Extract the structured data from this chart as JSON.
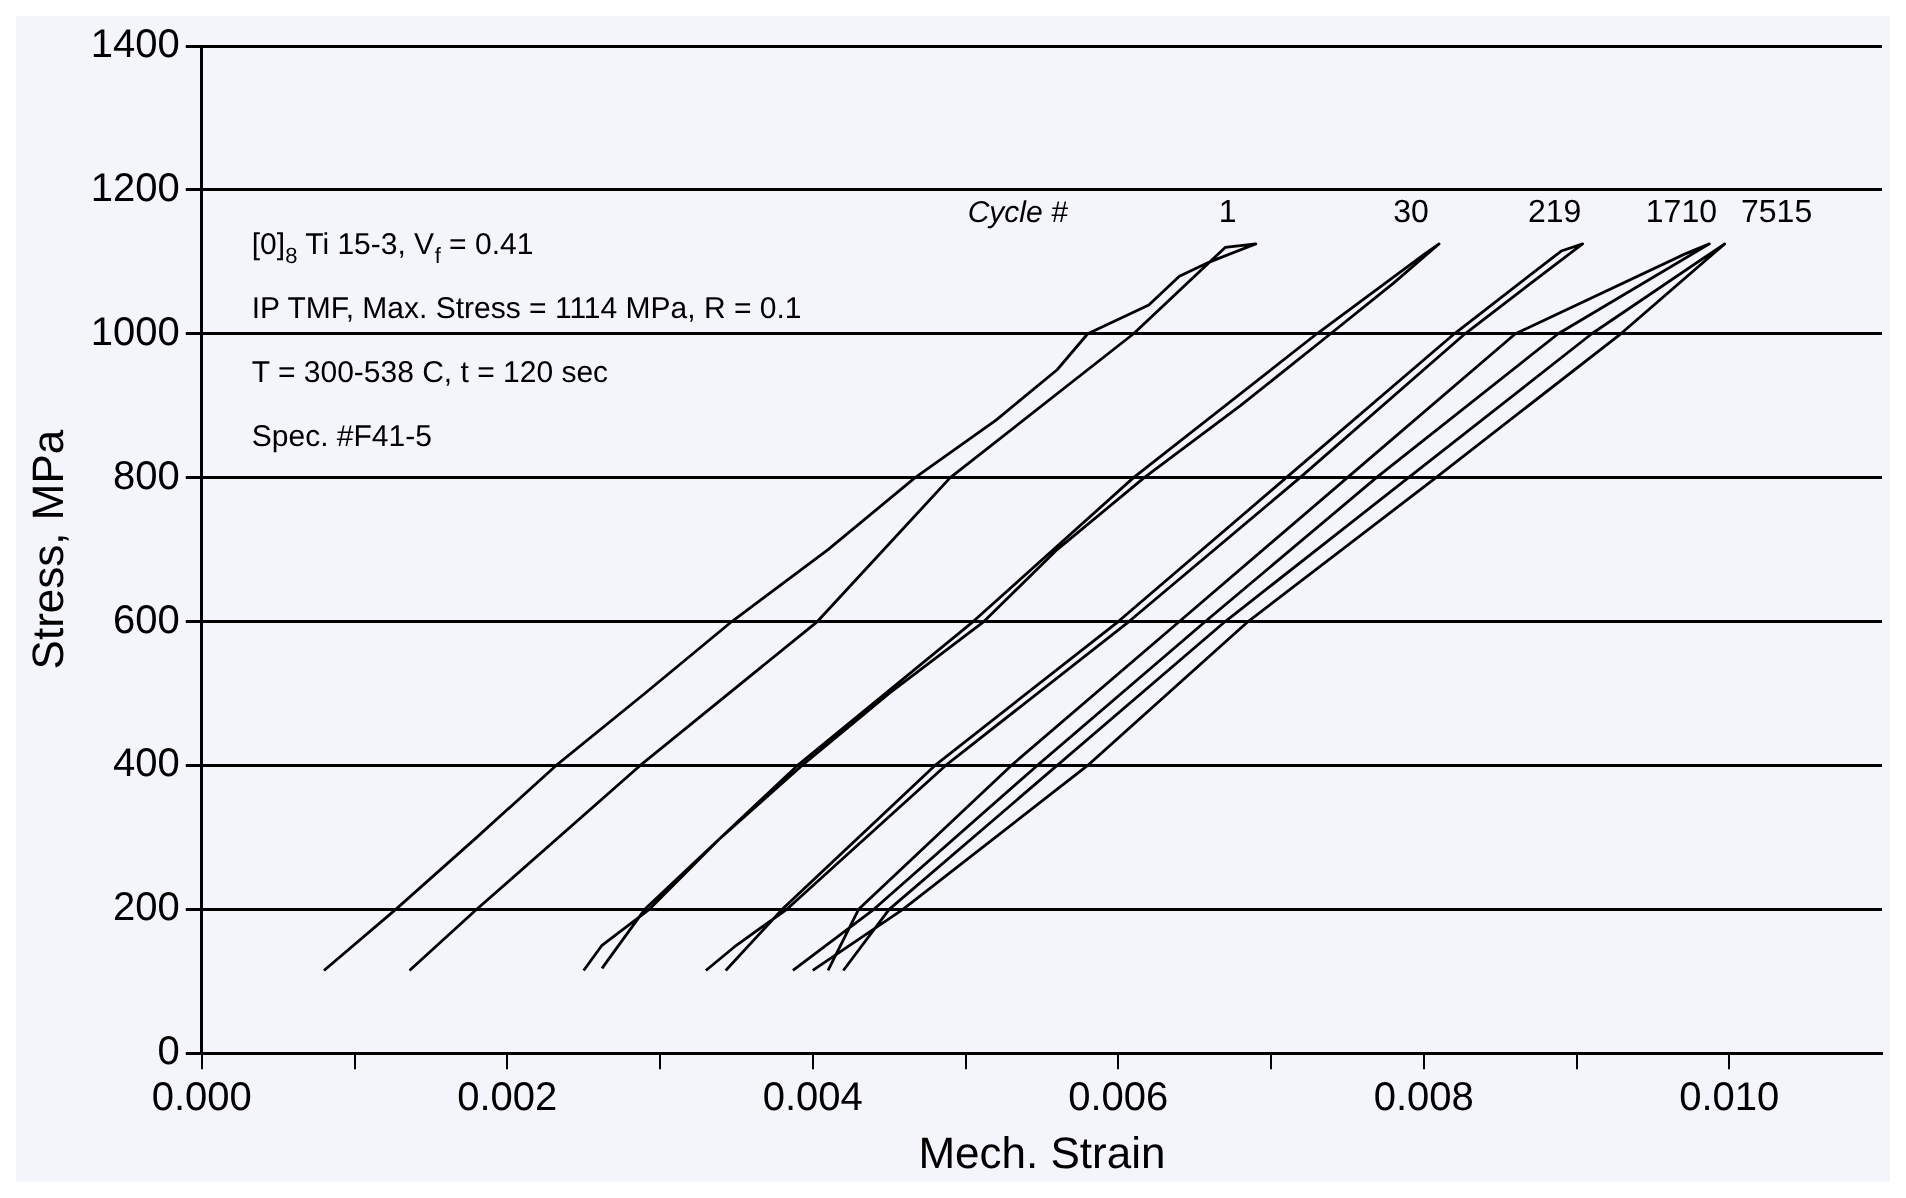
{
  "chart_data": {
    "type": "line",
    "xlabel": "Mech. Strain",
    "ylabel": "Stress, MPa",
    "legend_title": "Cycle #",
    "annotations": [
      "[0]$_{8}$ Ti 15-3, V$_{f}$ = 0.41",
      "IP TMF, Max. Stress = 1114 MPa, R = 0.1",
      "T = 300-538 C, t = 120 sec",
      "Spec. #F41-5"
    ],
    "xlim": [
      0,
      0.011
    ],
    "ylim": [
      0,
      1400
    ],
    "xticks": [
      {
        "value": 0,
        "label": "0.000"
      },
      {
        "value": 0.001,
        "label": null
      },
      {
        "value": 0.002,
        "label": "0.002"
      },
      {
        "value": 0.003,
        "label": null
      },
      {
        "value": 0.004,
        "label": "0.004"
      },
      {
        "value": 0.005,
        "label": null
      },
      {
        "value": 0.006,
        "label": "0.006"
      },
      {
        "value": 0.007,
        "label": null
      },
      {
        "value": 0.008,
        "label": "0.008"
      },
      {
        "value": 0.009,
        "label": null
      },
      {
        "value": 0.01,
        "label": "0.010"
      }
    ],
    "yticks": [
      0,
      200,
      400,
      600,
      800,
      1000,
      1200,
      1400
    ],
    "grid": "y",
    "marker": "none",
    "line_style": "solid",
    "series": [
      {
        "name": "1",
        "color": "#000000",
        "x": [
          0.0008,
          0.00127,
          0.0018,
          0.00232,
          0.0029,
          0.00347,
          0.0041,
          0.00467,
          0.0052,
          0.0056,
          0.0058,
          0.0062,
          0.0064,
          0.0066,
          0.0069,
          0.0067,
          0.0061,
          0.0049,
          0.00403,
          0.00287,
          0.0018,
          0.00136
        ],
        "values": [
          115,
          200,
          300,
          400,
          500,
          600,
          700,
          800,
          880,
          950,
          1000,
          1040,
          1080,
          1100,
          1125,
          1120,
          1000,
          800,
          600,
          400,
          200,
          115
        ]
      },
      {
        "name": "30",
        "color": "#000000",
        "x": [
          0.0025,
          0.00262,
          0.00293,
          0.0034,
          0.00393,
          0.0045,
          0.00512,
          0.0056,
          0.00617,
          0.0068,
          0.00739,
          0.0078,
          0.0081,
          0.008,
          0.0073,
          0.0061,
          0.00505,
          0.0039,
          0.0029,
          0.00262
        ],
        "values": [
          115,
          150,
          200,
          300,
          400,
          500,
          600,
          700,
          800,
          900,
          1000,
          1070,
          1125,
          1110,
          1000,
          800,
          600,
          400,
          200,
          118
        ]
      },
      {
        "name": "219",
        "color": "#000000",
        "x": [
          0.0033,
          0.0035,
          0.00383,
          0.00487,
          0.00607,
          0.00719,
          0.00827,
          0.0087,
          0.00904,
          0.0089,
          0.0082,
          0.0071,
          0.006,
          0.0048,
          0.0038,
          0.00343
        ],
        "values": [
          115,
          150,
          200,
          400,
          600,
          800,
          1000,
          1070,
          1125,
          1115,
          1000,
          800,
          600,
          400,
          200,
          115
        ]
      },
      {
        "name": "1710",
        "color": "#000000",
        "x": [
          0.00387,
          0.0044,
          0.00547,
          0.00657,
          0.00769,
          0.00888,
          0.00987,
          0.0097,
          0.0086,
          0.0075,
          0.0064,
          0.0053,
          0.0043,
          0.0041
        ],
        "values": [
          115,
          200,
          400,
          600,
          800,
          1000,
          1125,
          1110,
          1000,
          800,
          600,
          400,
          200,
          115
        ]
      },
      {
        "name": "7515",
        "color": "#000000",
        "x": [
          0.004,
          0.00459,
          0.0058,
          0.00685,
          0.00808,
          0.00929,
          0.00997,
          0.0099,
          0.0091,
          0.0079,
          0.0067,
          0.0056,
          0.0045,
          0.0042
        ],
        "values": [
          115,
          200,
          400,
          600,
          800,
          1000,
          1125,
          1115,
          1000,
          800,
          600,
          400,
          200,
          115
        ]
      }
    ]
  }
}
